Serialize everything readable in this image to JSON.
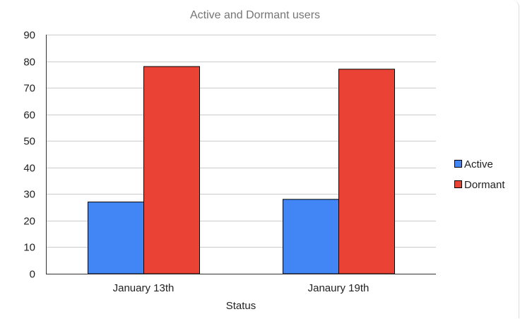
{
  "chart_data": {
    "type": "bar",
    "title": "Active and Dormant users",
    "xlabel": "Status",
    "ylabel": "",
    "categories": [
      "January 13th",
      "Janaury 19th"
    ],
    "series": [
      {
        "name": "Active",
        "values": [
          27,
          28
        ],
        "color": "#4285f4"
      },
      {
        "name": "Dormant",
        "values": [
          78,
          77
        ],
        "color": "#ea4335"
      }
    ],
    "ylim": [
      0,
      90
    ],
    "yticks": [
      0,
      10,
      20,
      30,
      40,
      50,
      60,
      70,
      80,
      90
    ],
    "grid": true,
    "legend_position": "right"
  }
}
